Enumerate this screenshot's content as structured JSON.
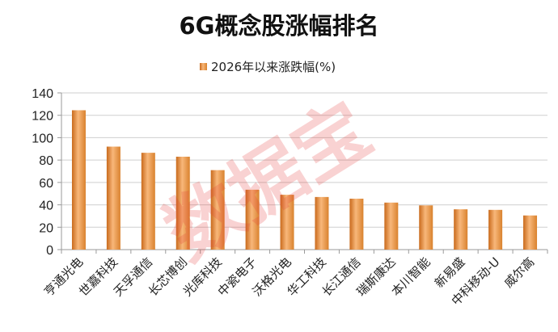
{
  "chart_data": {
    "type": "bar",
    "title": "6G概念股涨幅排名",
    "legend": {
      "position": "top",
      "entries": [
        "2026年以来涨跌幅(%)"
      ]
    },
    "categories": [
      "亨通光电",
      "世嘉科技",
      "天孚通信",
      "长芯博创",
      "光库科技",
      "中瓷电子",
      "沃格光电",
      "华工科技",
      "长江通信",
      "瑞斯康达",
      "本川智能",
      "新易盛",
      "中科移动-U",
      "威尔高"
    ],
    "series": [
      {
        "name": "2026年以来涨跌幅(%)",
        "values": [
          124.5,
          92,
          86.5,
          83,
          71,
          53.5,
          49,
          47,
          45.5,
          42,
          39.5,
          36,
          35.5,
          30.5
        ]
      }
    ],
    "ylim": [
      0,
      140
    ],
    "yticks": [
      0,
      20,
      40,
      60,
      80,
      100,
      120,
      140
    ],
    "grid": true,
    "colors": {
      "bar_light": "#f8b77a",
      "bar_dark": "#c96a1c",
      "watermark": "#e53935"
    },
    "watermark": "数据宝"
  }
}
